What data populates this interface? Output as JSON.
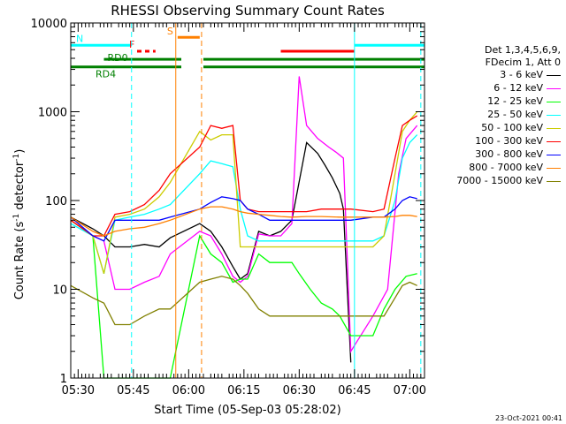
{
  "chart_data": {
    "type": "line",
    "title": "RHESSI Observing Summary Count Rates",
    "xlabel": "Start Time (05-Sep-03 05:28:02)",
    "ylabel_main": "Count Rate (s",
    "ylabel_sup1": "-1",
    "ylabel_mid": " detector",
    "ylabel_sup2": "-1",
    "ylabel_end": ")",
    "ylim": [
      1,
      10000
    ],
    "y_scale": "log",
    "y_ticks": [
      {
        "value": 1,
        "label": "1"
      },
      {
        "value": 10,
        "label": "10"
      },
      {
        "value": 100,
        "label": "100"
      },
      {
        "value": 1000,
        "label": "1000"
      },
      {
        "value": 10000,
        "label": "10000"
      }
    ],
    "x_range_min": [
      328,
      424
    ],
    "x_ticks": [
      {
        "min": 330,
        "label": "05:30"
      },
      {
        "min": 345,
        "label": "05:45"
      },
      {
        "min": 360,
        "label": "06:00"
      },
      {
        "min": 375,
        "label": "06:15"
      },
      {
        "min": 390,
        "label": "06:30"
      },
      {
        "min": 405,
        "label": "06:45"
      },
      {
        "min": 420,
        "label": "07:00"
      }
    ],
    "legend_header": [
      "Det 1,3,4,5,6,9,",
      "FDecim 1, Att 0"
    ],
    "series": [
      {
        "name": "3 - 6 keV",
        "color": "#000000",
        "points": [
          [
            328,
            65
          ],
          [
            334,
            48
          ],
          [
            337,
            40
          ],
          [
            340,
            30
          ],
          [
            344,
            30
          ],
          [
            348,
            32
          ],
          [
            352,
            30
          ],
          [
            355,
            38
          ],
          [
            363,
            55
          ],
          [
            366,
            45
          ],
          [
            369,
            30
          ],
          [
            372,
            18
          ],
          [
            374,
            13
          ],
          [
            376,
            15
          ],
          [
            379,
            45
          ],
          [
            382,
            40
          ],
          [
            385,
            45
          ],
          [
            388,
            60
          ],
          [
            392,
            450
          ],
          [
            395,
            340
          ],
          [
            397,
            250
          ],
          [
            399,
            180
          ],
          [
            401,
            120
          ],
          [
            402,
            80
          ],
          [
            404,
            1.5
          ]
        ]
      },
      {
        "name": "6 - 12 keV",
        "color": "#ff00ff",
        "points": [
          [
            328,
            60
          ],
          [
            334,
            40
          ],
          [
            337,
            35
          ],
          [
            340,
            10
          ],
          [
            344,
            10
          ],
          [
            348,
            12
          ],
          [
            352,
            14
          ],
          [
            355,
            25
          ],
          [
            363,
            45
          ],
          [
            366,
            40
          ],
          [
            369,
            25
          ],
          [
            372,
            14
          ],
          [
            374,
            12
          ],
          [
            376,
            14
          ],
          [
            379,
            42
          ],
          [
            382,
            40
          ],
          [
            385,
            40
          ],
          [
            388,
            55
          ],
          [
            390,
            2500
          ],
          [
            392,
            700
          ],
          [
            395,
            500
          ],
          [
            398,
            400
          ],
          [
            400,
            350
          ],
          [
            402,
            300
          ],
          [
            404,
            2
          ],
          [
            410,
            5
          ],
          [
            414,
            10
          ],
          [
            417,
            200
          ],
          [
            419,
            500
          ],
          [
            422,
            700
          ]
        ]
      },
      {
        "name": "12 - 25 keV",
        "color": "#00ff00",
        "points": [
          [
            328,
            60
          ],
          [
            334,
            40
          ],
          [
            337,
            1
          ],
          [
            344,
            1
          ],
          [
            352,
            1
          ],
          [
            355,
            1
          ],
          [
            363,
            40
          ],
          [
            366,
            25
          ],
          [
            369,
            20
          ],
          [
            372,
            12
          ],
          [
            374,
            13
          ],
          [
            376,
            13
          ],
          [
            379,
            25
          ],
          [
            382,
            20
          ],
          [
            385,
            20
          ],
          [
            388,
            20
          ],
          [
            390,
            15
          ],
          [
            393,
            10
          ],
          [
            396,
            7
          ],
          [
            399,
            6
          ],
          [
            401,
            5
          ],
          [
            404,
            3
          ],
          [
            410,
            3
          ],
          [
            413,
            6
          ],
          [
            416,
            10
          ],
          [
            419,
            14
          ],
          [
            422,
            15
          ]
        ]
      },
      {
        "name": "25 - 50 keV",
        "color": "#00ffff",
        "points": [
          [
            328,
            55
          ],
          [
            334,
            40
          ],
          [
            337,
            15
          ],
          [
            340,
            60
          ],
          [
            344,
            65
          ],
          [
            348,
            70
          ],
          [
            352,
            80
          ],
          [
            355,
            90
          ],
          [
            363,
            200
          ],
          [
            366,
            280
          ],
          [
            369,
            260
          ],
          [
            372,
            240
          ],
          [
            374,
            80
          ],
          [
            376,
            40
          ],
          [
            379,
            35
          ],
          [
            382,
            35
          ],
          [
            385,
            35
          ],
          [
            388,
            35
          ],
          [
            392,
            35
          ],
          [
            396,
            35
          ],
          [
            401,
            35
          ],
          [
            404,
            35
          ],
          [
            410,
            35
          ],
          [
            413,
            40
          ],
          [
            416,
            100
          ],
          [
            418,
            300
          ],
          [
            420,
            450
          ],
          [
            422,
            550
          ]
        ]
      },
      {
        "name": "50 - 100 keV",
        "color": "#cccc00",
        "points": [
          [
            328,
            60
          ],
          [
            334,
            40
          ],
          [
            337,
            15
          ],
          [
            340,
            65
          ],
          [
            344,
            70
          ],
          [
            348,
            80
          ],
          [
            352,
            110
          ],
          [
            355,
            160
          ],
          [
            363,
            600
          ],
          [
            366,
            480
          ],
          [
            369,
            550
          ],
          [
            372,
            550
          ],
          [
            374,
            30
          ],
          [
            376,
            30
          ],
          [
            379,
            30
          ],
          [
            382,
            30
          ],
          [
            385,
            30
          ],
          [
            388,
            30
          ],
          [
            392,
            30
          ],
          [
            396,
            30
          ],
          [
            401,
            30
          ],
          [
            404,
            30
          ],
          [
            410,
            30
          ],
          [
            413,
            40
          ],
          [
            416,
            200
          ],
          [
            418,
            600
          ],
          [
            420,
            800
          ],
          [
            422,
            1000
          ]
        ]
      },
      {
        "name": "100 - 300 keV",
        "color": "#ff0000",
        "points": [
          [
            328,
            60
          ],
          [
            334,
            40
          ],
          [
            337,
            40
          ],
          [
            340,
            70
          ],
          [
            344,
            75
          ],
          [
            348,
            90
          ],
          [
            352,
            130
          ],
          [
            355,
            200
          ],
          [
            363,
            400
          ],
          [
            366,
            700
          ],
          [
            369,
            650
          ],
          [
            372,
            700
          ],
          [
            374,
            100
          ],
          [
            376,
            80
          ],
          [
            379,
            75
          ],
          [
            382,
            75
          ],
          [
            385,
            75
          ],
          [
            388,
            75
          ],
          [
            392,
            75
          ],
          [
            396,
            80
          ],
          [
            401,
            80
          ],
          [
            404,
            80
          ],
          [
            410,
            75
          ],
          [
            413,
            80
          ],
          [
            416,
            300
          ],
          [
            418,
            700
          ],
          [
            420,
            800
          ],
          [
            422,
            900
          ]
        ]
      },
      {
        "name": "300 - 800 keV",
        "color": "#0000ff",
        "points": [
          [
            328,
            65
          ],
          [
            334,
            40
          ],
          [
            337,
            35
          ],
          [
            340,
            60
          ],
          [
            344,
            60
          ],
          [
            348,
            60
          ],
          [
            352,
            60
          ],
          [
            355,
            65
          ],
          [
            363,
            80
          ],
          [
            366,
            95
          ],
          [
            369,
            110
          ],
          [
            372,
            105
          ],
          [
            374,
            100
          ],
          [
            376,
            80
          ],
          [
            379,
            70
          ],
          [
            382,
            60
          ],
          [
            385,
            60
          ],
          [
            388,
            60
          ],
          [
            392,
            60
          ],
          [
            396,
            60
          ],
          [
            401,
            60
          ],
          [
            404,
            60
          ],
          [
            410,
            65
          ],
          [
            413,
            65
          ],
          [
            416,
            80
          ],
          [
            418,
            100
          ],
          [
            420,
            110
          ],
          [
            422,
            105
          ]
        ]
      },
      {
        "name": "800 - 7000 keV",
        "color": "#ff8000",
        "points": [
          [
            328,
            65
          ],
          [
            334,
            45
          ],
          [
            337,
            40
          ],
          [
            340,
            45
          ],
          [
            344,
            48
          ],
          [
            348,
            50
          ],
          [
            352,
            55
          ],
          [
            355,
            60
          ],
          [
            363,
            80
          ],
          [
            366,
            85
          ],
          [
            369,
            85
          ],
          [
            372,
            80
          ],
          [
            374,
            75
          ],
          [
            376,
            72
          ],
          [
            379,
            70
          ],
          [
            382,
            68
          ],
          [
            385,
            66
          ],
          [
            388,
            65
          ],
          [
            392,
            66
          ],
          [
            396,
            66
          ],
          [
            401,
            65
          ],
          [
            404,
            65
          ],
          [
            410,
            65
          ],
          [
            413,
            65
          ],
          [
            416,
            66
          ],
          [
            418,
            68
          ],
          [
            420,
            68
          ],
          [
            422,
            66
          ]
        ]
      },
      {
        "name": "7000 - 15000 keV",
        "color": "#808000",
        "points": [
          [
            328,
            11
          ],
          [
            334,
            8
          ],
          [
            337,
            7
          ],
          [
            340,
            4
          ],
          [
            344,
            4
          ],
          [
            348,
            5
          ],
          [
            352,
            6
          ],
          [
            355,
            6
          ],
          [
            363,
            12
          ],
          [
            366,
            13
          ],
          [
            369,
            14
          ],
          [
            372,
            13
          ],
          [
            374,
            11
          ],
          [
            376,
            9
          ],
          [
            379,
            6
          ],
          [
            382,
            5
          ],
          [
            385,
            5
          ],
          [
            388,
            5
          ],
          [
            392,
            5
          ],
          [
            396,
            5
          ],
          [
            401,
            5
          ],
          [
            404,
            5
          ],
          [
            410,
            5
          ],
          [
            413,
            5
          ],
          [
            416,
            8
          ],
          [
            418,
            11
          ],
          [
            420,
            12
          ],
          [
            422,
            11
          ]
        ]
      }
    ],
    "flags": [
      {
        "label": "N",
        "color": "#00ffff",
        "segments": [
          [
            328,
            344.5
          ],
          [
            405,
            424
          ]
        ],
        "level": 5600
      },
      {
        "label": "F",
        "color": "#ff0000",
        "dashed": true,
        "segments": [
          [
            346,
            351
          ]
        ],
        "level": 4800
      },
      {
        "label": "F",
        "color": "#ff0000",
        "dashed": false,
        "segments": [
          [
            385,
            405
          ]
        ],
        "level": 4800
      },
      {
        "label": "S",
        "color": "#ff8000",
        "segments": [
          [
            357,
            363
          ]
        ],
        "level": 6900
      },
      {
        "label": "RD0",
        "color": "#008000",
        "segments": [
          [
            337,
            358
          ],
          [
            364,
            424
          ]
        ],
        "level": 3900
      },
      {
        "label": "RD4",
        "color": "#008000",
        "segments": [
          [
            328,
            358
          ],
          [
            364,
            424
          ]
        ],
        "level": 3200
      }
    ],
    "vlines": [
      {
        "min": 344.5,
        "color": "#00ffff",
        "dashed": true
      },
      {
        "min": 423,
        "color": "#00ffff",
        "dashed": true
      },
      {
        "min": 405,
        "color": "#00ffff",
        "dashed": false
      },
      {
        "min": 328,
        "color": "#00ffff",
        "dashed": false
      },
      {
        "min": 356.5,
        "color": "#ff8000",
        "dashed": false
      },
      {
        "min": 363.5,
        "color": "#ff8000",
        "dashed": true
      }
    ]
  },
  "footer": {
    "date": "23-Oct-2021 00:41"
  }
}
